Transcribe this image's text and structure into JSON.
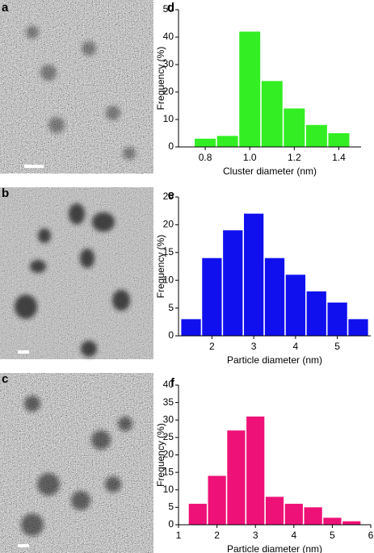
{
  "panel_labels": [
    "a",
    "b",
    "c"
  ],
  "chart_data": [
    {
      "type": "histogram",
      "label": "d",
      "color": "#33ee22",
      "bins": [
        0.75,
        0.85,
        0.95,
        1.05,
        1.15,
        1.25,
        1.35,
        1.45
      ],
      "values": [
        3,
        4,
        42,
        24,
        14,
        8,
        5
      ],
      "xlim": [
        0.68,
        1.5
      ],
      "xticks": [
        0.8,
        {
          "value": 1,
          "label": "1.0"
        },
        1.2,
        1.4
      ],
      "ylim": [
        0,
        50
      ],
      "yticks": [
        0,
        10,
        20,
        30,
        40,
        50
      ],
      "xlabel": "Cluster diameter (nm)",
      "ylabel": "Frequency (%)"
    },
    {
      "type": "histogram",
      "label": "e",
      "color": "#1010ee",
      "bins": [
        1.25,
        1.75,
        2.25,
        2.75,
        3.25,
        3.75,
        4.25,
        4.75,
        5.25,
        5.75
      ],
      "values": [
        3,
        14,
        19,
        22,
        14,
        11,
        8,
        6,
        3
      ],
      "xlim": [
        1.2,
        5.8
      ],
      "xticks": [
        2,
        3,
        4,
        5
      ],
      "ylim": [
        0,
        25
      ],
      "yticks": [
        0,
        5,
        10,
        15,
        20,
        25
      ],
      "xlabel": "Particle diameter (nm)",
      "ylabel": "Frequency (%)"
    },
    {
      "type": "histogram",
      "label": "f",
      "color": "#ee1177",
      "bins": [
        1.25,
        1.75,
        2.25,
        2.75,
        3.25,
        3.75,
        4.25,
        4.75,
        5.25,
        5.75
      ],
      "values": [
        6,
        14,
        27,
        31,
        8,
        6,
        5,
        2,
        1
      ],
      "xlim": [
        1,
        6
      ],
      "xticks": [
        1,
        2,
        3,
        4,
        5,
        6
      ],
      "ylim": [
        0,
        40
      ],
      "yticks": [
        0,
        5,
        10,
        15,
        20,
        25,
        30,
        35,
        40
      ],
      "xlabel": "Particle diameter (nm)",
      "ylabel": "Frequency (%)"
    }
  ]
}
